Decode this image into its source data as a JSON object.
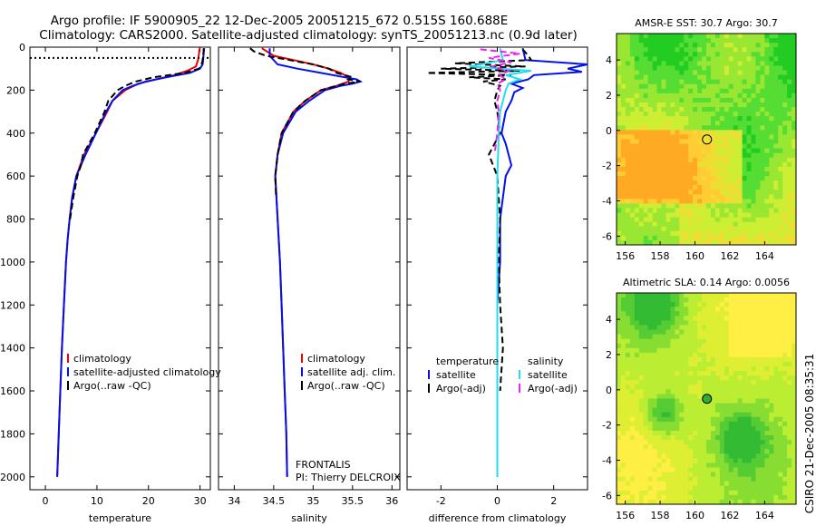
{
  "figure": {
    "title_line1": "Argo profile: IF 5900905_22 12-Dec-2005 20051215_672 0.515S 160.688E",
    "title_line2": "Climatology: CARS2000. Satellite-adjusted climatology: synTS_20051213.nc (0.9d later)",
    "side_label": "CSIRO 21-Dec-2005 08:35:31"
  },
  "colors": {
    "climatology": "#ee0000",
    "satellite": "#0010ee",
    "argo": "#000000",
    "sal_satellite": "#22ddee",
    "sal_argo": "#ee22ee"
  },
  "chart_data": [
    {
      "id": "temperature",
      "type": "line",
      "xlabel": "temperature",
      "xlim": [
        -3,
        32
      ],
      "ylim": [
        2060,
        0
      ],
      "xticks": [
        0,
        10,
        20,
        30
      ],
      "yticks": [
        0,
        200,
        400,
        600,
        800,
        1000,
        1200,
        1400,
        1600,
        1800,
        2000
      ],
      "legend": [
        "climatology",
        "satellite-adjusted climatology",
        "Argo(..raw -QC)"
      ],
      "legend_placement": "lower-right",
      "mixed_layer_marker_depth": 50,
      "series": [
        {
          "name": "climatology",
          "color": "#ee0000",
          "depth": [
            5,
            30,
            60,
            90,
            110,
            130,
            150,
            170,
            200,
            250,
            300,
            400,
            500,
            600,
            700,
            800,
            900,
            1000,
            1200,
            1400,
            1600,
            1800,
            2000
          ],
          "values": [
            29.9,
            29.8,
            29.6,
            29.2,
            27.5,
            25.0,
            21.5,
            18.0,
            15.5,
            13.0,
            12.0,
            9.8,
            7.5,
            6.0,
            5.2,
            4.7,
            4.3,
            4.0,
            3.6,
            3.2,
            2.9,
            2.6,
            2.3
          ]
        },
        {
          "name": "satellite-adjusted climatology",
          "color": "#0010ee",
          "depth": [
            5,
            30,
            60,
            80,
            100,
            120,
            140,
            160,
            180,
            200,
            250,
            300,
            400,
            500,
            600,
            700,
            800,
            900,
            1000,
            1200,
            1400,
            1600,
            1800,
            2000
          ],
          "values": [
            30.8,
            30.7,
            30.6,
            30.5,
            30.0,
            28.0,
            23.5,
            19.5,
            17.0,
            15.0,
            13.0,
            11.8,
            9.8,
            7.8,
            6.0,
            5.2,
            4.7,
            4.3,
            4.0,
            3.6,
            3.2,
            2.9,
            2.6,
            2.3
          ]
        },
        {
          "name": "Argo(..raw -QC)",
          "color": "#000000",
          "dash": "7,4",
          "depth": [
            5,
            20,
            40,
            60,
            80,
            100,
            120,
            140,
            160,
            180,
            200,
            250,
            300,
            400,
            500,
            550,
            600,
            700,
            800
          ],
          "values": [
            30.7,
            30.7,
            30.6,
            30.5,
            30.3,
            29.8,
            27.0,
            21.0,
            17.5,
            15.5,
            14.0,
            12.2,
            11.5,
            9.6,
            7.3,
            6.9,
            6.2,
            5.4,
            4.8
          ]
        }
      ]
    },
    {
      "id": "salinity",
      "type": "line",
      "xlabel": "salinity",
      "xlim": [
        33.8,
        36.1
      ],
      "ylim": [
        2060,
        0
      ],
      "xticks": [
        34,
        34.5,
        35,
        35.5,
        36
      ],
      "legend": [
        "climatology",
        "satellite adj. clim.",
        "Argo(..raw -QC)"
      ],
      "legend_placement": "lower-right",
      "annotation": [
        "FRONTALIS",
        "PI: Thierry DELCROIX"
      ],
      "series": [
        {
          "name": "climatology",
          "color": "#ee0000",
          "depth": [
            5,
            40,
            60,
            80,
            100,
            120,
            140,
            160,
            180,
            200,
            250,
            300,
            400,
            500,
            600,
            800,
            1000,
            1200,
            1400,
            1600,
            1800,
            2000
          ],
          "values": [
            34.35,
            34.5,
            34.75,
            35.0,
            35.2,
            35.35,
            35.45,
            35.45,
            35.3,
            35.1,
            34.9,
            34.75,
            34.6,
            34.55,
            34.52,
            34.55,
            34.58,
            34.6,
            34.62,
            34.64,
            34.66,
            34.67
          ]
        },
        {
          "name": "satellite adj. clim.",
          "color": "#0010ee",
          "depth": [
            5,
            40,
            80,
            100,
            120,
            140,
            150,
            160,
            170,
            180,
            200,
            250,
            300,
            400,
            500,
            600,
            800,
            1000,
            1200,
            1400,
            1600,
            1800,
            2000
          ],
          "values": [
            34.45,
            34.45,
            34.55,
            34.8,
            35.1,
            35.4,
            35.55,
            35.6,
            35.5,
            35.35,
            35.15,
            34.95,
            34.78,
            34.62,
            34.55,
            34.52,
            34.55,
            34.58,
            34.6,
            34.62,
            34.64,
            34.66,
            34.67
          ]
        },
        {
          "name": "Argo(..raw -QC)",
          "color": "#000000",
          "dash": "7,4",
          "depth": [
            5,
            20,
            40,
            60,
            80,
            100,
            120,
            140,
            150,
            160,
            170,
            180,
            200,
            250,
            300,
            400,
            500,
            600,
            700
          ],
          "values": [
            34.2,
            34.25,
            34.4,
            34.7,
            35.0,
            35.2,
            35.3,
            35.5,
            35.45,
            35.6,
            35.4,
            35.3,
            35.1,
            34.9,
            34.75,
            34.6,
            34.55,
            34.52,
            34.53
          ]
        }
      ]
    },
    {
      "id": "difference",
      "type": "line",
      "xlabel": "difference from climatology",
      "xlim": [
        -3.2,
        3.2
      ],
      "ylim": [
        2060,
        0
      ],
      "xticks": [
        -2,
        0,
        2
      ],
      "legend_left_title": "temperature",
      "legend_right_title": "salinity",
      "legend_left": [
        "satellite",
        "Argo(-adj)"
      ],
      "legend_right": [
        "satellite",
        "Argo(-adj)"
      ],
      "series": [
        {
          "name": "temperature satellite",
          "color": "#0010ee",
          "depth": [
            5,
            60,
            80,
            100,
            115,
            130,
            150,
            170,
            190,
            210,
            250,
            300,
            400,
            450,
            500,
            550,
            600,
            700,
            800,
            1000,
            1200,
            1400,
            1600,
            1800,
            2000
          ],
          "values": [
            0.9,
            1.0,
            3.2,
            2.5,
            3.0,
            1.3,
            1.1,
            0.5,
            0.9,
            0.6,
            0.5,
            0.3,
            0.15,
            0.3,
            0.4,
            0.5,
            0.3,
            0.2,
            0.1,
            0.1,
            0.0,
            0.0,
            0.0,
            0.0,
            0.0
          ]
        },
        {
          "name": "temperature Argo(-adj)",
          "color": "#000000",
          "dash": "7,4",
          "depth": [
            10,
            40,
            60,
            75,
            90,
            100,
            110,
            120,
            130,
            140,
            150,
            160,
            180,
            200,
            250,
            300,
            400,
            500,
            600,
            800,
            1000,
            1200,
            1400,
            1600
          ],
          "values": [
            0.9,
            1.1,
            1.2,
            -1.5,
            1.0,
            -2.0,
            0.8,
            -2.5,
            0.5,
            -1.0,
            0.3,
            -0.5,
            0.1,
            0.0,
            -0.1,
            0.0,
            0.1,
            -0.3,
            0.0,
            0.1,
            0.05,
            0.1,
            0.2,
            0.1
          ]
        },
        {
          "name": "salinity satellite",
          "color": "#22ddee",
          "depth": [
            5,
            60,
            90,
            110,
            130,
            150,
            170,
            200,
            250,
            300,
            400,
            500,
            600,
            800,
            1000,
            1200,
            1400,
            1600,
            1800,
            2000
          ],
          "values": [
            0.1,
            0.2,
            -1.0,
            1.2,
            0.3,
            0.8,
            0.4,
            0.3,
            0.2,
            0.1,
            0.05,
            0.03,
            0.0,
            0.0,
            0.0,
            0.0,
            0.0,
            0.0,
            0.0,
            0.0
          ]
        },
        {
          "name": "salinity Argo(-adj)",
          "color": "#ee22ee",
          "dash": "7,4",
          "depth": [
            10,
            30,
            50,
            70,
            90,
            110,
            130,
            150,
            170,
            200,
            250,
            300,
            400,
            500
          ],
          "values": [
            -0.6,
            0.8,
            -0.3,
            0.5,
            -0.2,
            0.4,
            0.1,
            0.3,
            0.0,
            0.1,
            0.0,
            0.05,
            0.0,
            -0.1
          ]
        }
      ]
    },
    {
      "id": "sst-map",
      "type": "heatmap",
      "title": "AMSR-E SST: 30.7 Argo: 30.7",
      "xticks": [
        156,
        158,
        160,
        162,
        164
      ],
      "yticks": [
        4,
        2,
        0,
        -2,
        -4,
        -6
      ],
      "xlim": [
        155.5,
        165.8
      ],
      "ylim": [
        -6.5,
        5.5
      ],
      "argo_position": [
        160.688,
        -0.515
      ],
      "colors": [
        "#ffaa22",
        "#ffcc33",
        "#eedd33",
        "#ccee33",
        "#99e633",
        "#55dd33",
        "#22cc22"
      ]
    },
    {
      "id": "sla-map",
      "type": "heatmap",
      "title": "Altimetric SLA: 0.14 Argo: 0.0056",
      "xticks": [
        156,
        158,
        160,
        162,
        164
      ],
      "yticks": [
        4,
        2,
        0,
        -2,
        -4,
        -6
      ],
      "xlim": [
        155.5,
        165.8
      ],
      "ylim": [
        -6.5,
        5.5
      ],
      "argo_position": [
        160.688,
        -0.515
      ],
      "colors": [
        "#ffee44",
        "#ddee33",
        "#bbee33",
        "#88dd33",
        "#55cc33",
        "#33bb33"
      ]
    }
  ]
}
